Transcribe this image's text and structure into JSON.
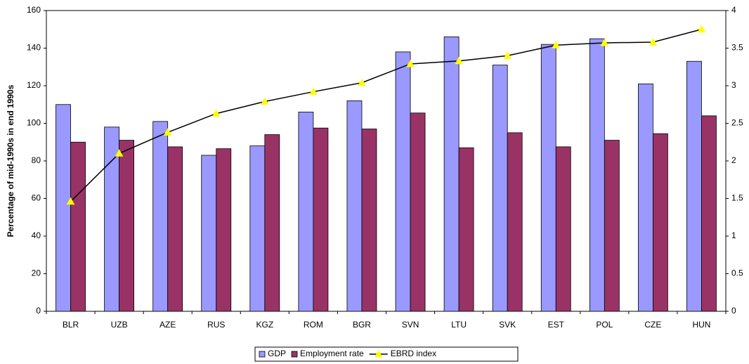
{
  "chart_data": {
    "type": "bar-line",
    "y_label": "Percentage of mid-1990s in end 1990s",
    "categories": [
      "BLR",
      "UZB",
      "AZE",
      "RUS",
      "KGZ",
      "ROM",
      "BGR",
      "SVN",
      "LTU",
      "SVK",
      "EST",
      "POL",
      "CZE",
      "HUN"
    ],
    "series": [
      {
        "name": "GDP",
        "type": "bar",
        "color": "#9999ff",
        "values": [
          110,
          98,
          101,
          83,
          88,
          106,
          112,
          138,
          146,
          131,
          142,
          145,
          121,
          133
        ]
      },
      {
        "name": "Employment rate",
        "type": "bar",
        "color": "#993366",
        "values": [
          90,
          91,
          87.5,
          86.5,
          94,
          97.5,
          97,
          105.5,
          87,
          95,
          87.5,
          91,
          94.5,
          104
        ]
      },
      {
        "name": "EBRD index",
        "type": "line",
        "axis": "y2",
        "color": "#000000",
        "marker_color": "#ffff00",
        "values": [
          1.46,
          2.1,
          2.38,
          2.63,
          2.79,
          2.92,
          3.04,
          3.29,
          3.33,
          3.4,
          3.54,
          3.57,
          3.58,
          3.75
        ]
      }
    ],
    "ylim": [
      0,
      160
    ],
    "yticks": [
      0,
      20,
      40,
      60,
      80,
      100,
      120,
      140,
      160
    ],
    "y2lim": [
      0,
      4
    ],
    "y2ticks": [
      0,
      0.5,
      1,
      1.5,
      2,
      2.5,
      3,
      3.5,
      4
    ],
    "legend": "bottom"
  }
}
